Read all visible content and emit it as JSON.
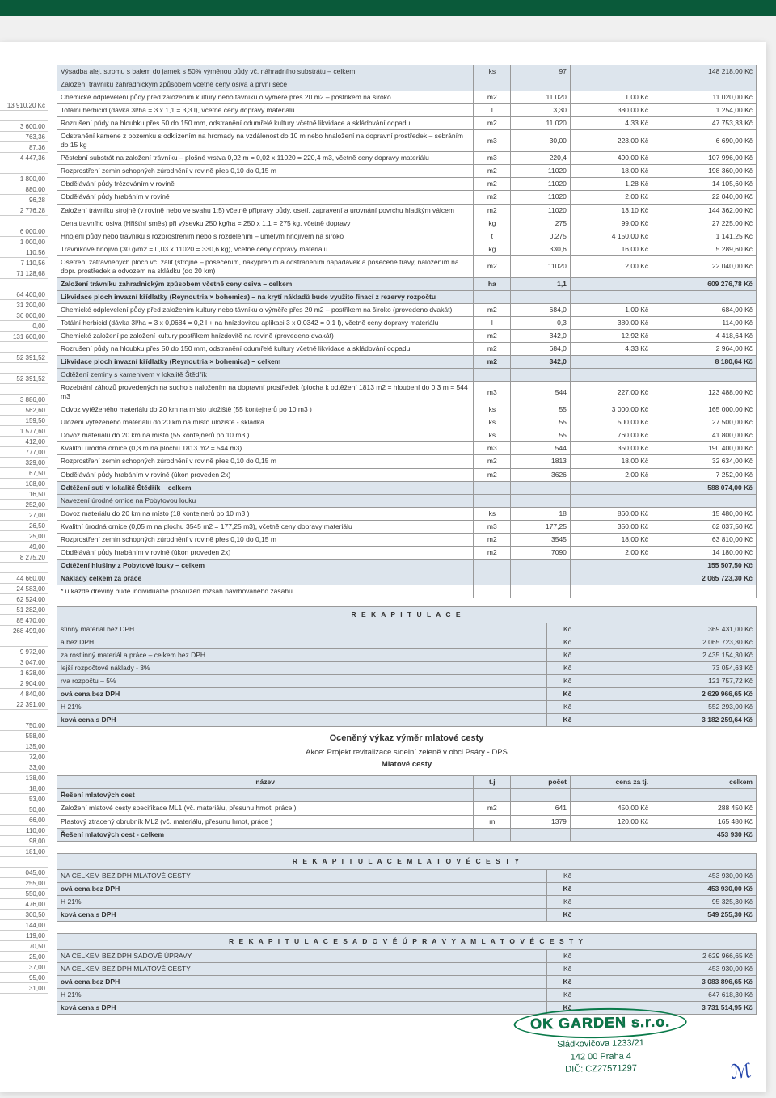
{
  "left_values": [
    "13 910,20 Kč",
    "",
    "3 600,00",
    "763,36",
    "87,36",
    "4 447,36",
    "",
    "1 800,00",
    "880,00",
    "96,28",
    "2 776,28",
    "",
    "6 000,00",
    "1 000,00",
    "110,56",
    "7 110,56",
    "71 128,68",
    "",
    "64 400,00",
    "31 200,00",
    "36 000,00",
    "0,00",
    "131 600,00",
    "",
    "52 391,52",
    "",
    "52 391,52",
    "",
    "3 886,00",
    "562,60",
    "159,50",
    "1 577,60",
    "412,00",
    "777,00",
    "329,00",
    "67,50",
    "108,00",
    "16,50",
    "252,00",
    "27,00",
    "26,50",
    "25,00",
    "49,00",
    "8 275,20",
    "",
    "44 660,00",
    "24 583,00",
    "62 524,00",
    "51 282,00",
    "85 470,00",
    "268 499,00",
    "",
    "9 972,00",
    "3 047,00",
    "1 628,00",
    "2 904,00",
    "4 840,00",
    "22 391,00",
    "",
    "750,00",
    "558,00",
    "135,00",
    "72,00",
    "33,00",
    "138,00",
    "18,00",
    "53,00",
    "50,00",
    "66,00",
    "110,00",
    "98,00",
    "181,00",
    "",
    "045,00",
    "255,00",
    "550,00",
    "476,00",
    "300,50",
    "144,00",
    "119,00",
    "70,50",
    "25,00",
    "37,00",
    "95,00",
    "31,00"
  ],
  "main_rows": [
    {
      "desc": "Výsadba alej. stromu s balem do jamek s 50% výměnou půdy vč. náhradního substrátu – celkem",
      "unit": "ks",
      "qty": "97",
      "price": "",
      "total": "148 218,00 Kč",
      "shade": true
    },
    {
      "desc": "Založení trávníku zahradnickým způsobem včetně ceny osiva a první seče",
      "unit": "",
      "qty": "",
      "price": "",
      "total": "",
      "shade": true
    },
    {
      "desc": "Chemické odplevelení půdy před založením kultury nebo távníku o výměře přes 20 m2 – postřikem na široko",
      "unit": "m2",
      "qty": "11 020",
      "price": "1,00 Kč",
      "total": "11 020,00 Kč"
    },
    {
      "desc": "Totální herbicid (dávka 3l/ha = 3 x 1,1 = 3,3 l), včetně ceny dopravy materiálu",
      "unit": "l",
      "qty": "3,30",
      "price": "380,00 Kč",
      "total": "1 254,00 Kč"
    },
    {
      "desc": "Rozrušení půdy na hloubku přes 50 do 150 mm, odstranění odumřelé kultury včetně likvidace a skládování odpadu",
      "unit": "m2",
      "qty": "11 020",
      "price": "4,33 Kč",
      "total": "47 753,33 Kč"
    },
    {
      "desc": "Odstranění kamene z pozemku s odklizením na hromady na vzdálenost do 10 m nebo hnaložení na dopravní prostředek – sebráním do 15 kg",
      "unit": "m3",
      "qty": "30,00",
      "price": "223,00 Kč",
      "total": "6 690,00 Kč"
    },
    {
      "desc": "Pěstební substrát na založení trávníku – plošné vrstva 0,02 m = 0,02 x 11020 = 220,4 m3, včetně ceny dopravy materiálu",
      "unit": "m3",
      "qty": "220,4",
      "price": "490,00 Kč",
      "total": "107 996,00 Kč"
    },
    {
      "desc": "Rozprostření zemin schopných zúrodnění v rovině přes 0,10 do 0,15 m",
      "unit": "m2",
      "qty": "11020",
      "price": "18,00 Kč",
      "total": "198 360,00 Kč"
    },
    {
      "desc": "Obdělávání půdy frézováním v rovině",
      "unit": "m2",
      "qty": "11020",
      "price": "1,28 Kč",
      "total": "14 105,60 Kč"
    },
    {
      "desc": "Obdělávání půdy hrabáním v rovině",
      "unit": "m2",
      "qty": "11020",
      "price": "2,00 Kč",
      "total": "22 040,00 Kč"
    },
    {
      "desc": "Založení trávníku strojně (v rovině nebo ve svahu 1:5) včetně přípravy půdy, osetí, zapravení a urovnání povrchu hladkým válcem",
      "unit": "m2",
      "qty": "11020",
      "price": "13,10 Kč",
      "total": "144 362,00 Kč"
    },
    {
      "desc": "Cena travního osiva (Hřišťní směs) při výsevku 250 kg/ha = 250 x 1,1 = 275 kg, včetně dopravy",
      "unit": "kg",
      "qty": "275",
      "price": "99,00 Kč",
      "total": "27 225,00 Kč"
    },
    {
      "desc": "Hnojení půdy nebo trávníku s rozprostřením nebo s rozdělením – umělým hnojivem na široko",
      "unit": "t",
      "qty": "0,275",
      "price": "4 150,00 Kč",
      "total": "1 141,25 Kč"
    },
    {
      "desc": "Trávníkové hnojivo (30 g/m2 = 0,03 x 11020 = 330,6 kg), včetně ceny dopravy materiálu",
      "unit": "kg",
      "qty": "330,6",
      "price": "16,00 Kč",
      "total": "5 289,60 Kč"
    },
    {
      "desc": "Ošetření zatravněných ploch vč. zálit (strojně – posečením, nakypřením a odstraněním napadávek a posečené trávy, naložením na dopr. prostředek a odvozem na skládku (do 20 km)",
      "unit": "m2",
      "qty": "11020",
      "price": "2,00 Kč",
      "total": "22 040,00 Kč"
    },
    {
      "desc": "Založení trávníku zahradnickým způsobem včetně ceny osiva – celkem",
      "unit": "ha",
      "qty": "1,1",
      "price": "",
      "total": "609 276,78 Kč",
      "shade": true,
      "bold": true
    },
    {
      "desc": "Likvidace ploch invazní křídlatky (Reynoutria × bohemica) – na krytí nákladů bude využito finací z rezervy rozpočtu",
      "unit": "",
      "qty": "",
      "price": "",
      "total": "",
      "shade": true,
      "bold": true
    },
    {
      "desc": "Chemické odplevelení půdy před založením kultury nebo távníku o výměře přes 20 m2 – postřikem na široko (provedeno dvakát)",
      "unit": "m2",
      "qty": "684,0",
      "price": "1,00 Kč",
      "total": "684,00 Kč"
    },
    {
      "desc": "Totální herbicid (dávka 3l/ha = 3 x 0,0684 = 0,2 l + na hnízdovitou aplikaci 3 x 0,0342 = 0,1 l), včetně ceny dopravy materiálu",
      "unit": "l",
      "qty": "0,3",
      "price": "380,00 Kč",
      "total": "114,00 Kč"
    },
    {
      "desc": "Chemické založení pc založení kultury postřikem hnízdovitě na rovině (provedeno dvakát)",
      "unit": "m2",
      "qty": "342,0",
      "price": "12,92 Kč",
      "total": "4 418,64 Kč"
    },
    {
      "desc": "Rozrušení půdy na hloubku přes 50 do 150 mm, odstranění odumřelé kultury včetně likvidace a skládování odpadu",
      "unit": "m2",
      "qty": "684,0",
      "price": "4,33 Kč",
      "total": "2 964,00 Kč"
    },
    {
      "desc": "Likvidace ploch invazní křídlatky (Reynoutria × bohemica) – celkem",
      "unit": "m2",
      "qty": "342,0",
      "price": "",
      "total": "8 180,64 Kč",
      "shade": true,
      "bold": true
    },
    {
      "desc": "Odtěžení zeminy s kamenivem v lokalitě Štědřík",
      "unit": "",
      "qty": "",
      "price": "",
      "total": "",
      "shade": true
    },
    {
      "desc": "Rozebrání záhozů provedených na sucho s naložením na dopravní prostředek (plocha k odtěžení 1813 m2 = hloubení do 0,3 m = 544 m3",
      "unit": "m3",
      "qty": "544",
      "price": "227,00 Kč",
      "total": "123 488,00 Kč"
    },
    {
      "desc": "Odvoz vytěženého materiálu do 20 km na místo uložiště (55 kontejnerů po 10 m3 )",
      "unit": "ks",
      "qty": "55",
      "price": "3 000,00 Kč",
      "total": "165 000,00 Kč"
    },
    {
      "desc": "Uložení vytěženého materiálu do 20 km na místo uložiště - skládka",
      "unit": "ks",
      "qty": "55",
      "price": "500,00 Kč",
      "total": "27 500,00 Kč"
    },
    {
      "desc": "Dovoz materiálu do 20 km na místo (55 kontejnerů po 10 m3 )",
      "unit": "ks",
      "qty": "55",
      "price": "760,00 Kč",
      "total": "41 800,00 Kč"
    },
    {
      "desc": "Kvalitní úrodná ornice (0,3 m na plochu 1813 m2 = 544 m3)",
      "unit": "m3",
      "qty": "544",
      "price": "350,00 Kč",
      "total": "190 400,00 Kč"
    },
    {
      "desc": "Rozprostření zemin schopných zúrodnění v rovině přes 0,10 do 0,15 m",
      "unit": "m2",
      "qty": "1813",
      "price": "18,00 Kč",
      "total": "32 634,00 Kč"
    },
    {
      "desc": "Obdělávání půdy hrabáním v rovině (úkon proveden 2x)",
      "unit": "m2",
      "qty": "3626",
      "price": "2,00 Kč",
      "total": "7 252,00 Kč"
    },
    {
      "desc": "Odtěžení suti v lokalitě Štědřík – celkem",
      "unit": "",
      "qty": "",
      "price": "",
      "total": "588 074,00 Kč",
      "shade": true,
      "bold": true
    },
    {
      "desc": "Navezení úrodné ornice na Pobytovou louku",
      "unit": "",
      "qty": "",
      "price": "",
      "total": "",
      "shade": true
    },
    {
      "desc": "Dovoz materiálu do 20 km na místo (18 kontejnerů po 10 m3 )",
      "unit": "ks",
      "qty": "18",
      "price": "860,00 Kč",
      "total": "15 480,00 Kč"
    },
    {
      "desc": "Kvalitní úrodná ornice (0,05 m na plochu 3545 m2 = 177,25 m3), včetně ceny dopravy materiálu",
      "unit": "m3",
      "qty": "177,25",
      "price": "350,00 Kč",
      "total": "62 037,50 Kč"
    },
    {
      "desc": "Rozprostření zemin schopných zúrodnění v rovině přes 0,10 do 0,15 m",
      "unit": "m2",
      "qty": "3545",
      "price": "18,00 Kč",
      "total": "63 810,00 Kč"
    },
    {
      "desc": "Obdělávání půdy hrabáním v rovině (úkon proveden 2x)",
      "unit": "m2",
      "qty": "7090",
      "price": "2,00 Kč",
      "total": "14 180,00 Kč"
    },
    {
      "desc": "Odtěžení hlušiny z Pobytové louky – celkem",
      "unit": "",
      "qty": "",
      "price": "",
      "total": "155 507,50 Kč",
      "shade": true,
      "bold": true
    },
    {
      "desc": "Náklady celkem za práce",
      "unit": "",
      "qty": "",
      "price": "",
      "total": "2 065 723,30 Kč",
      "shade": true,
      "bold": true
    },
    {
      "desc": "* u každé dřeviny bude individuálně posouzen rozsah navrhovaného zásahu",
      "unit": "",
      "qty": "",
      "price": "",
      "total": "",
      "noborder": true
    }
  ],
  "rekap1_title": "R E K A P I T U L A C E",
  "rekap1": [
    {
      "desc": "stinný materiál bez DPH",
      "unit": "Kč",
      "total": "369 431,00 Kč",
      "shade": true
    },
    {
      "desc": "a bez DPH",
      "unit": "Kč",
      "total": "2 065 723,30 Kč",
      "shade": true
    },
    {
      "desc": "za rostlinný materiál a práce – celkem bez DPH",
      "unit": "Kč",
      "total": "2 435 154,30 Kč",
      "shade": true
    },
    {
      "desc": "lejší rozpočtové náklady - 3%",
      "unit": "Kč",
      "total": "73 054,63 Kč",
      "shade": true
    },
    {
      "desc": "rva rozpočtu – 5%",
      "unit": "Kč",
      "total": "121 757,72 Kč",
      "shade": true
    },
    {
      "desc": "ová cena bez DPH",
      "unit": "Kč",
      "total": "2 629 966,65 Kč",
      "shade": true,
      "bold": true
    },
    {
      "desc": "H 21%",
      "unit": "Kč",
      "total": "552 293,00 Kč",
      "shade": true
    },
    {
      "desc": "ková cena s DPH",
      "unit": "Kč",
      "total": "3 182 259,64 Kč",
      "shade": true,
      "bold": true
    }
  ],
  "mlat_heading": "Oceněný výkaz výměr mlatové cesty",
  "mlat_sub1": "Akce: Projekt revitalizace sídelní zeleně v obci Psáry - DPS",
  "mlat_sub2": "Mlatové cesty",
  "mlat_header": {
    "name": "název",
    "tj": "t.j",
    "pocet": "počet",
    "cena": "cena za tj.",
    "celkem": "celkem"
  },
  "mlat_rows": [
    {
      "desc": "Řešení mlatových cest",
      "unit": "",
      "qty": "",
      "price": "",
      "total": "",
      "shade": true,
      "bold": true
    },
    {
      "desc": "Založení mlatové cesty specifikace ML1 (vč. materiálu, přesunu hmot, práce )",
      "unit": "m2",
      "qty": "641",
      "price": "450,00 Kč",
      "total": "288 450 Kč"
    },
    {
      "desc": "Plastový ztracený obrubník ML2 (vč. materiálu, přesunu hmot, práce )",
      "unit": "m",
      "qty": "1379",
      "price": "120,00 Kč",
      "total": "165 480 Kč"
    },
    {
      "desc": "Řešení mlatových cest - celkem",
      "unit": "",
      "qty": "",
      "price": "",
      "total": "453 930 Kč",
      "shade": true,
      "bold": true
    }
  ],
  "rekap2_title": "R E K A P I T U L A C E   M L A T O V É   C E S T Y",
  "rekap2": [
    {
      "desc": "NA CELKEM BEZ DPH MLATOVÉ CESTY",
      "unit": "Kč",
      "total": "453 930,00 Kč",
      "shade": true
    },
    {
      "desc": "ová cena bez DPH",
      "unit": "Kč",
      "total": "453 930,00 Kč",
      "shade": true,
      "bold": true
    },
    {
      "desc": "H 21%",
      "unit": "Kč",
      "total": "95 325,30 Kč",
      "shade": true
    },
    {
      "desc": "ková cena s DPH",
      "unit": "Kč",
      "total": "549 255,30 Kč",
      "shade": true,
      "bold": true
    }
  ],
  "rekap3_title": "R E K A P I T U L A C E   S A D O V É   Ú P R A V Y   A   M L A T O V É   C E S T Y",
  "rekap3": [
    {
      "desc": "NA CELKEM BEZ DPH SADOVÉ ÚPRAVY",
      "unit": "Kč",
      "total": "2 629 966,65 Kč",
      "shade": true
    },
    {
      "desc": "NA CELKEM BEZ DPH MLATOVÉ CESTY",
      "unit": "Kč",
      "total": "453 930,00 Kč",
      "shade": true
    },
    {
      "desc": "ová cena bez DPH",
      "unit": "Kč",
      "total": "3 083 896,65 Kč",
      "shade": true,
      "bold": true
    },
    {
      "desc": "H 21%",
      "unit": "Kč",
      "total": "647 618,30 Kč",
      "shade": true
    },
    {
      "desc": "ková cena s DPH",
      "unit": "Kč",
      "total": "3 731 514,95 Kč",
      "shade": true,
      "bold": true
    }
  ],
  "stamp": {
    "company": "OK GARDEN s.r.o.",
    "addr1": "Sládkovičova 1233/21",
    "addr2": "142 00 Praha 4",
    "dic": "DIČ: CZ27571297"
  }
}
